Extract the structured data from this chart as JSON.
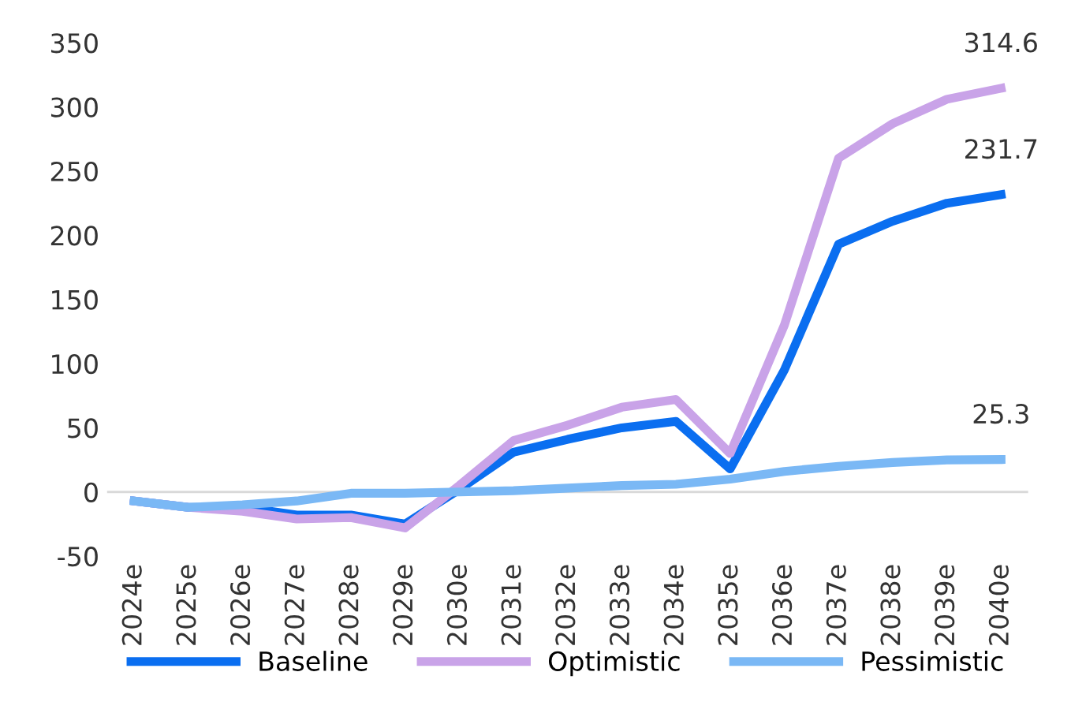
{
  "chart_data": {
    "type": "line",
    "categories": [
      "2024e",
      "2025e",
      "2026e",
      "2027e",
      "2028e",
      "2029e",
      "2030e",
      "2031e",
      "2032e",
      "2033e",
      "2034e",
      "2035e",
      "2036e",
      "2037e",
      "2038e",
      "2039e",
      "2040e"
    ],
    "series": [
      {
        "name": "Baseline",
        "color": "#0a6ef0",
        "values": [
          -7,
          -12,
          -12,
          -18,
          -18,
          -25,
          2,
          31,
          41,
          50,
          55,
          18,
          95,
          193,
          211,
          225,
          231.7
        ],
        "value_labels": [
          null,
          null,
          null,
          null,
          null,
          null,
          null,
          null,
          null,
          null,
          null,
          null,
          null,
          null,
          null,
          null,
          "231.7"
        ]
      },
      {
        "name": "Optimistic",
        "color": "#c9a3e8",
        "values": [
          -7,
          -12,
          -15,
          -21,
          -20,
          -28,
          5,
          40,
          52,
          66,
          72,
          30,
          130,
          260,
          287,
          306,
          314.6
        ],
        "value_labels": [
          null,
          null,
          null,
          null,
          null,
          null,
          null,
          null,
          null,
          null,
          null,
          null,
          null,
          null,
          null,
          null,
          "314.6"
        ]
      },
      {
        "name": "Pessimistic",
        "color": "#7ab8f5",
        "values": [
          -7,
          -12,
          -10,
          -7,
          -1,
          -1,
          0,
          1,
          3,
          5,
          6,
          10,
          16,
          20,
          23,
          25,
          25.3
        ],
        "value_labels": [
          null,
          null,
          null,
          null,
          null,
          null,
          null,
          null,
          null,
          null,
          null,
          null,
          null,
          null,
          null,
          null,
          "25.3"
        ]
      }
    ],
    "ylim": [
      -50,
      350
    ],
    "yticks": [
      -50,
      0,
      50,
      100,
      150,
      200,
      250,
      300,
      350
    ],
    "ref_lines": [
      {
        "axis": "y",
        "value": 0,
        "color": "#d9d9d9"
      }
    ],
    "grid": false,
    "legend": "bottom",
    "marker": "none",
    "line_style": "solid"
  }
}
